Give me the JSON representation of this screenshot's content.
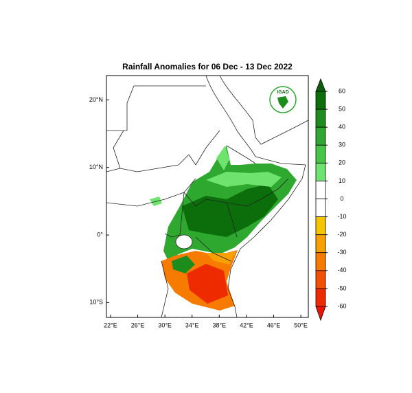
{
  "title": "Rainfall Anomalies for 06 Dec - 13 Dec 2022",
  "logo": "IGAD",
  "map": {
    "xlim": [
      21.4,
      51.1
    ],
    "ylim": [
      -12.2,
      23.6
    ],
    "xticks": [
      {
        "value": 22,
        "label": "22°E"
      },
      {
        "value": 26,
        "label": "26°E"
      },
      {
        "value": 30,
        "label": "30°E"
      },
      {
        "value": 34,
        "label": "34°E"
      },
      {
        "value": 38,
        "label": "38°E"
      },
      {
        "value": 42,
        "label": "42°E"
      },
      {
        "value": 46,
        "label": "46°E"
      },
      {
        "value": 50,
        "label": "50°E"
      }
    ],
    "yticks": [
      {
        "value": 20,
        "label": "20°N"
      },
      {
        "value": 10,
        "label": "10°N"
      },
      {
        "value": 0,
        "label": "0°"
      },
      {
        "value": -10,
        "label": "10°S"
      }
    ]
  },
  "colorbar": {
    "ticks": [
      60,
      50,
      40,
      30,
      20,
      10,
      0,
      -10,
      -20,
      -30,
      -40,
      -50,
      -60
    ],
    "colors": [
      "#0b5f0b",
      "#0b6e0b",
      "#1c8c1c",
      "#2fa82f",
      "#46c646",
      "#6ee46e",
      "#ffffff",
      "#ffffff",
      "#f7c400",
      "#f7a000",
      "#f77b00",
      "#f25000",
      "#ee2a00",
      "#ee1500"
    ]
  }
}
